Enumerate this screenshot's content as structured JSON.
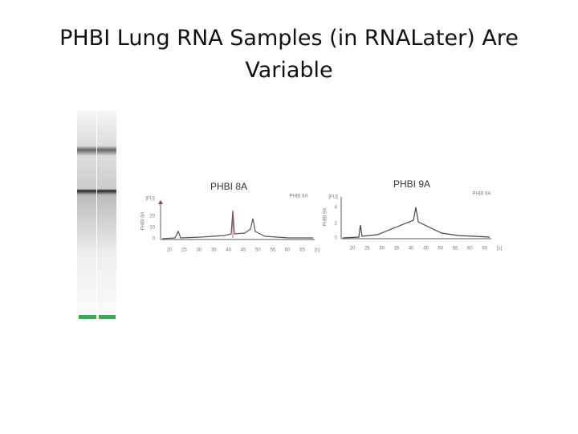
{
  "slide": {
    "title": "PHBI Lung RNA Samples (in RNALater) Are Variable",
    "panels": [
      {
        "label": "PHBI 8A",
        "corner_label": "PHBI 8A",
        "side_label": "PHBI 8A",
        "y_unit": "[FU]",
        "y_ticks": [
          "20",
          "10",
          "0"
        ],
        "x_ticks": [
          "20",
          "25",
          "30",
          "35",
          "40",
          "45",
          "50",
          "55",
          "60",
          "65",
          "[s]"
        ]
      },
      {
        "label": "PHBI 9A",
        "corner_label": "PHBI 9A",
        "side_label": "PHBI 9A",
        "y_unit": "[FU]",
        "y_ticks": [
          "4",
          "2",
          "0"
        ],
        "x_ticks": [
          "20",
          "25",
          "30",
          "35",
          "40",
          "45",
          "50",
          "55",
          "60",
          "65",
          "[s]"
        ]
      }
    ]
  }
}
